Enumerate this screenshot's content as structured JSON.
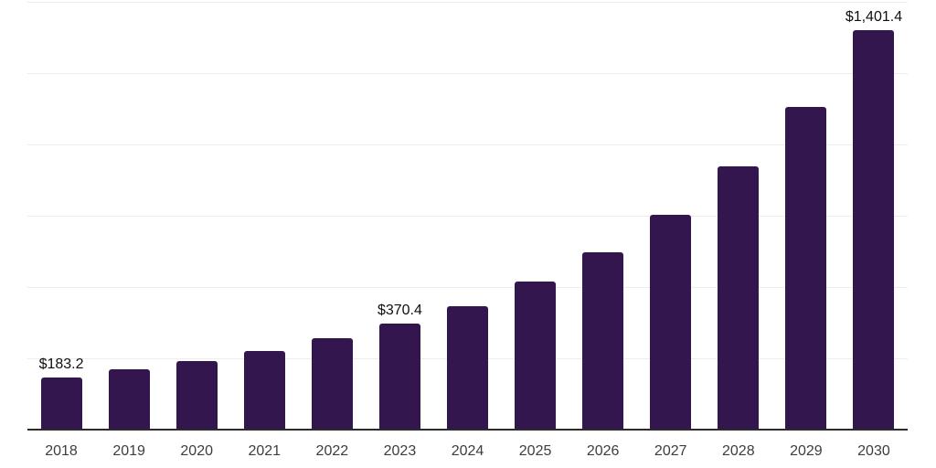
{
  "chart_data": {
    "type": "bar",
    "title": "",
    "xlabel": "",
    "ylabel": "",
    "categories": [
      "2018",
      "2019",
      "2020",
      "2021",
      "2022",
      "2023",
      "2024",
      "2025",
      "2026",
      "2027",
      "2028",
      "2029",
      "2030"
    ],
    "values": [
      183.2,
      210,
      240,
      275,
      320,
      370.4,
      434,
      518,
      621,
      752,
      924,
      1131,
      1401.4
    ],
    "data_labels": {
      "2018": "$183.2",
      "2023": "$370.4",
      "2030": "$1,401.4"
    },
    "ylim": [
      0,
      1500
    ],
    "gridline_step": 250,
    "grid": "horizontal-only",
    "legend": "none",
    "colors": {
      "bar": "#34164E",
      "background": "#ffffff",
      "gridline": "#ededed",
      "axis_line": "#2b2b2b",
      "tick_label": "#3d3d3d",
      "data_label": "#0f0f0f"
    }
  }
}
